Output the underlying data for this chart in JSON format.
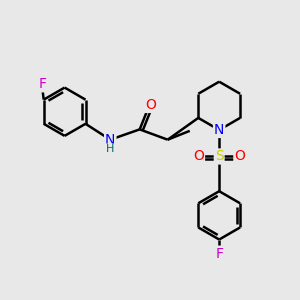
{
  "background_color": "#e8e8e8",
  "atom_colors": {
    "C": "#000000",
    "N": "#0000ff",
    "O": "#ff0000",
    "S": "#cccc00",
    "F": "#cc00cc",
    "H": "#006666"
  },
  "bond_color": "#000000",
  "bond_width": 1.8,
  "font_size_atom": 10,
  "font_size_h": 8
}
